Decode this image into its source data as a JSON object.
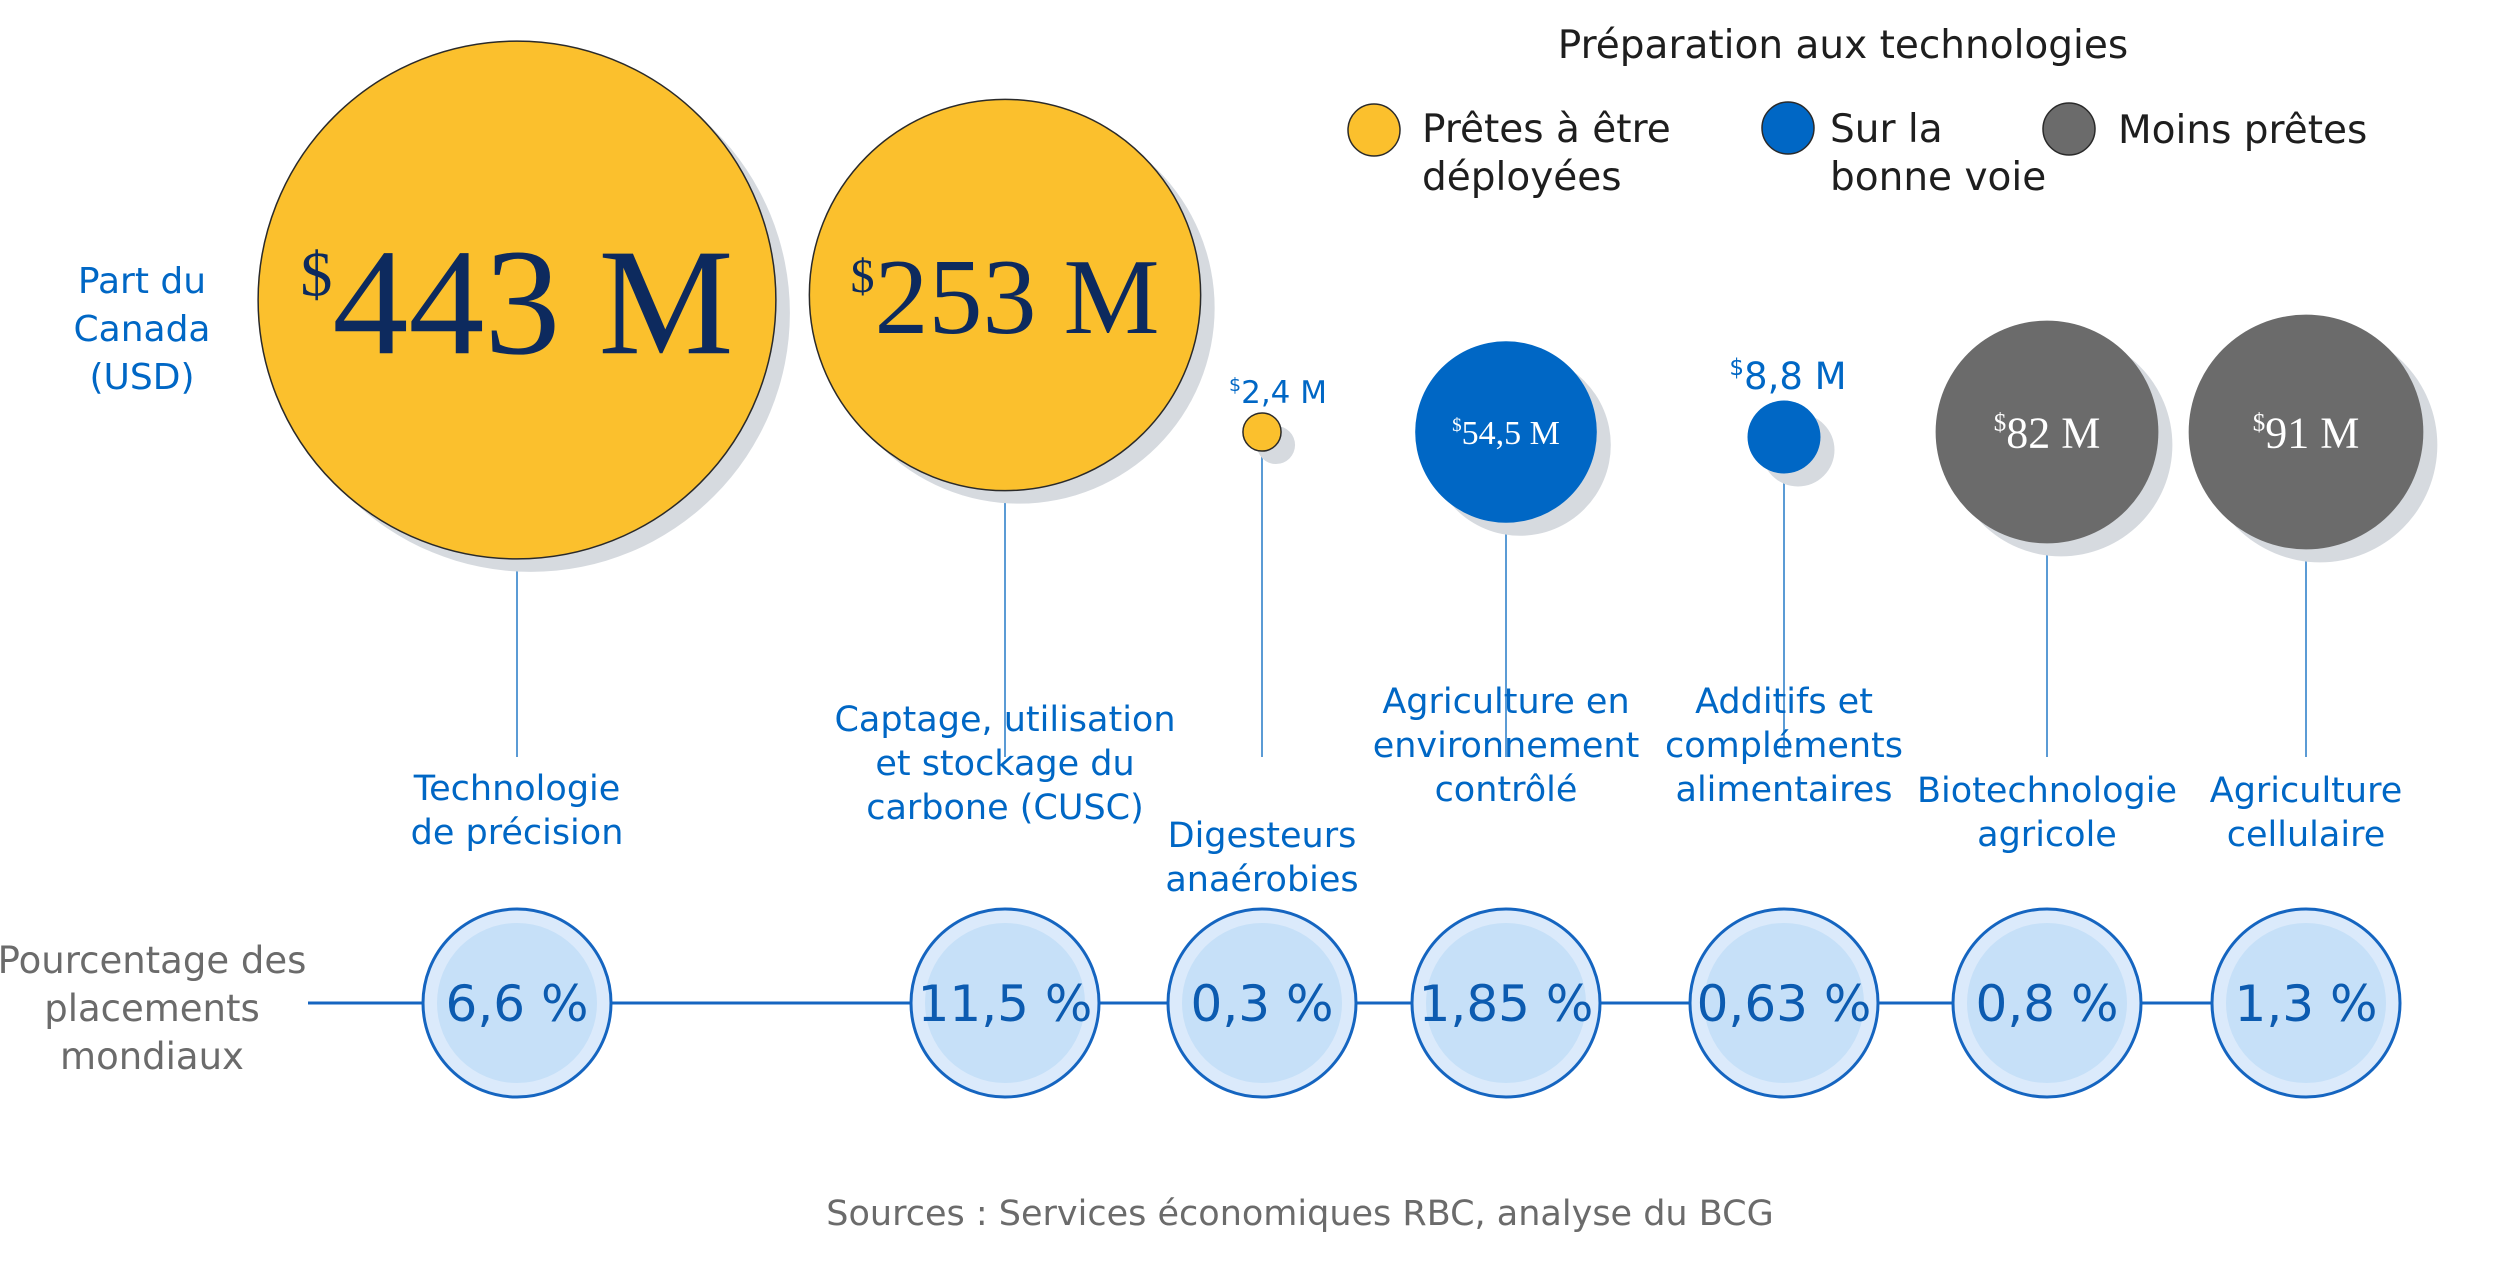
{
  "chart_data": {
    "type": "bubble",
    "legend": {
      "title": "Préparation aux technologies",
      "entries": [
        {
          "key": "ready",
          "lines": [
            "Prêtes à être",
            "déployées"
          ]
        },
        {
          "key": "track",
          "lines": [
            "Sur la",
            "bonne voie"
          ]
        },
        {
          "key": "less",
          "lines": [
            "Moins prêtes"
          ]
        }
      ]
    },
    "colors": {
      "ready": "#fbc02d",
      "track": "#0067c5",
      "less": "#6b6b6b",
      "amount_on_yellow": "#0d2a5e",
      "amount_on_dark": "#ffffff",
      "amount_outside": "#0067c5",
      "pct_fill": "#c6e0f8",
      "pct_ring": "#dbeafb",
      "pct_border": "#1565c0",
      "leader": "#5b9bd5"
    },
    "row_labels": {
      "amount": [
        "Part du",
        "Canada",
        "(USD)"
      ],
      "share": [
        "Pourcentage des",
        "placements",
        "mondiaux"
      ]
    },
    "currency_symbol": "$",
    "categories": [
      {
        "label": [
          "Technologie",
          "de précision"
        ],
        "readiness": "ready",
        "amount_musd": 443,
        "amount_text": "443 M",
        "share_pct": 6.6,
        "share_text": "6,6 %"
      },
      {
        "label": [
          "Captage, utilisation",
          "et stockage du",
          "carbone (CUSC)"
        ],
        "readiness": "ready",
        "amount_musd": 253,
        "amount_text": "253 M",
        "share_pct": 11.5,
        "share_text": "11,5 %"
      },
      {
        "label": [
          "Digesteurs",
          "anaérobies"
        ],
        "readiness": "ready",
        "amount_musd": 2.4,
        "amount_text": "2,4 M",
        "share_pct": 0.3,
        "share_text": "0,3 %"
      },
      {
        "label": [
          "Agriculture en",
          "environnement",
          "contrôlé"
        ],
        "readiness": "track",
        "amount_musd": 54.5,
        "amount_text": "54,5 M",
        "share_pct": 1.85,
        "share_text": "1,85 %"
      },
      {
        "label": [
          "Additifs et",
          "compléments",
          "alimentaires"
        ],
        "readiness": "track",
        "amount_musd": 8.8,
        "amount_text": "8,8 M",
        "share_pct": 0.63,
        "share_text": "0,63 %"
      },
      {
        "label": [
          "Biotechnologie",
          "agricole"
        ],
        "readiness": "less",
        "amount_musd": 82,
        "amount_text": "82 M",
        "share_pct": 0.8,
        "share_text": "0,8 %"
      },
      {
        "label": [
          "Agriculture",
          "cellulaire"
        ],
        "readiness": "less",
        "amount_musd": 91,
        "amount_text": "91 M",
        "share_pct": 1.3,
        "share_text": "1,3 %"
      }
    ],
    "source": "Sources : Services économiques RBC, analyse du BCG"
  }
}
